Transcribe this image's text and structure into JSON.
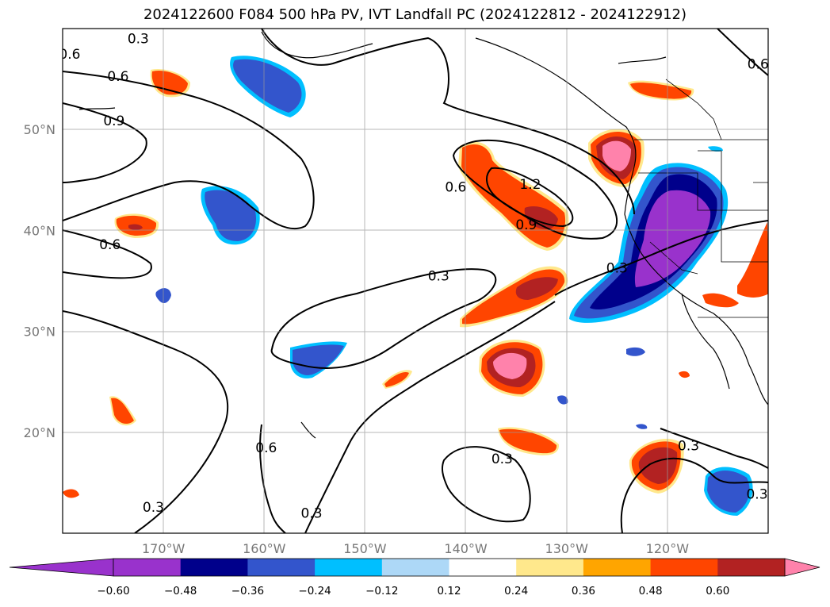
{
  "title": "2024122600 F084 500 hPa PV, IVT Landfall PC (2024122812 - 2024122912)",
  "map": {
    "lon_range": [
      -180,
      -110
    ],
    "lat_range": [
      10,
      60
    ],
    "lat_ticks": [
      {
        "lat": 50,
        "label": "50°N"
      },
      {
        "lat": 40,
        "label": "40°N"
      },
      {
        "lat": 30,
        "label": "30°N"
      },
      {
        "lat": 20,
        "label": "20°N"
      }
    ],
    "lon_ticks": [
      {
        "lon": -170,
        "label": "170°W"
      },
      {
        "lon": -160,
        "label": "160°W"
      },
      {
        "lon": -150,
        "label": "150°W"
      },
      {
        "lon": -140,
        "label": "140°W"
      },
      {
        "lon": -130,
        "label": "130°W"
      },
      {
        "lon": -120,
        "label": "120°W"
      }
    ],
    "contour_labels": [
      {
        "text": "0.3",
        "lon": -172.5,
        "lat": 59.0
      },
      {
        "text": "0.6",
        "lon": -174.5,
        "lat": 55.3
      },
      {
        "text": "0.9",
        "lon": -174.9,
        "lat": 50.9
      },
      {
        "text": "0.6",
        "lon": -175.3,
        "lat": 38.6
      },
      {
        "text": "0.6",
        "lon": -141.0,
        "lat": 44.3
      },
      {
        "text": "1.2",
        "lon": -133.6,
        "lat": 44.6
      },
      {
        "text": "0.9",
        "lon": -134.0,
        "lat": 40.6
      },
      {
        "text": "0.3",
        "lon": -142.7,
        "lat": 35.5
      },
      {
        "text": "0.3",
        "lon": -125.0,
        "lat": 36.3
      },
      {
        "text": "0.6",
        "lon": -179.3,
        "lat": 57.5
      },
      {
        "text": "0.6",
        "lon": -159.8,
        "lat": 18.5
      },
      {
        "text": "0.3",
        "lon": -136.4,
        "lat": 17.4
      },
      {
        "text": "0.3",
        "lon": -117.9,
        "lat": 18.7
      },
      {
        "text": "0.3",
        "lon": -111.1,
        "lat": 13.9
      },
      {
        "text": "0.3",
        "lon": -171.0,
        "lat": 12.6
      },
      {
        "text": "0.3",
        "lon": -155.3,
        "lat": 12.0
      },
      {
        "text": "0.6",
        "lon": -111.0,
        "lat": 56.5
      }
    ]
  },
  "colorbar": {
    "colors": [
      "#9932cc",
      "#00008b",
      "#3355cc",
      "#00bfff",
      "#add8f7",
      "#ffffff",
      "#ffe88c",
      "#ffa500",
      "#ff4500",
      "#b22222",
      "#ff82ab"
    ],
    "ticks": [
      "−0.60",
      "−0.48",
      "−0.36",
      "−0.24",
      "−0.12",
      "0.12",
      "0.24",
      "0.36",
      "0.48",
      "0.60"
    ]
  }
}
